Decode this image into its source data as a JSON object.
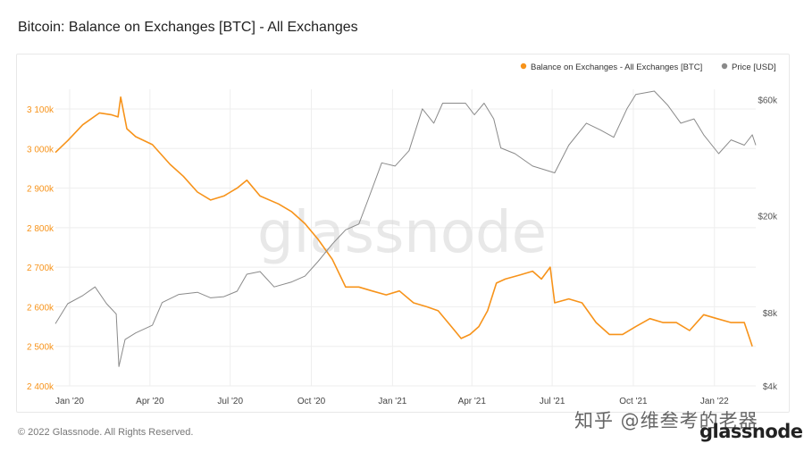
{
  "header": {
    "title": "Bitcoin: Balance on Exchanges [BTC] - All Exchanges"
  },
  "footer": {
    "copyright": "© 2022 Glassnode. All Rights Reserved.",
    "watermark_cn": "知乎 @维叁考的老器",
    "logo": "glassnode"
  },
  "chart_watermark": "glassnode",
  "colors": {
    "balance": "#f7931a",
    "price": "#8a8a8a",
    "grid": "#eeeeee"
  },
  "chart_data": {
    "type": "line",
    "legend": {
      "placement": "top-right",
      "items": [
        {
          "label": "Balance on Exchanges - All Exchanges [BTC]",
          "color": "#f7931a"
        },
        {
          "label": "Price [USD]",
          "color": "#8a8a8a"
        }
      ]
    },
    "x_ticks": [
      "Jan '20",
      "Apr '20",
      "Jul '20",
      "Oct '20",
      "Jan '21",
      "Apr '21",
      "Jul '21",
      "Oct '21",
      "Jan '22"
    ],
    "y_left": {
      "ticks": [
        "3 100k",
        "3 000k",
        "2 900k",
        "2 800k",
        "2 700k",
        "2 600k",
        "2 500k",
        "2 400k"
      ],
      "range": [
        2400000,
        3100000
      ]
    },
    "y_right": {
      "ticks": [
        "$60k",
        "$20k",
        "$8k",
        "$4k"
      ],
      "scale": "log"
    },
    "series": [
      {
        "name": "Balance on Exchanges - All Exchanges [BTC]",
        "axis": "left",
        "points": [
          [
            "2020-01-01",
            2990000
          ],
          [
            "2020-01-15",
            3020000
          ],
          [
            "2020-02-01",
            3060000
          ],
          [
            "2020-02-20",
            3090000
          ],
          [
            "2020-03-05",
            3085000
          ],
          [
            "2020-03-12",
            3080000
          ],
          [
            "2020-03-15",
            3130000
          ],
          [
            "2020-03-22",
            3050000
          ],
          [
            "2020-04-01",
            3030000
          ],
          [
            "2020-04-20",
            3010000
          ],
          [
            "2020-05-10",
            2960000
          ],
          [
            "2020-05-25",
            2930000
          ],
          [
            "2020-06-10",
            2890000
          ],
          [
            "2020-06-25",
            2870000
          ],
          [
            "2020-07-10",
            2880000
          ],
          [
            "2020-07-25",
            2900000
          ],
          [
            "2020-08-05",
            2920000
          ],
          [
            "2020-08-20",
            2880000
          ],
          [
            "2020-09-10",
            2860000
          ],
          [
            "2020-09-25",
            2840000
          ],
          [
            "2020-10-10",
            2810000
          ],
          [
            "2020-10-25",
            2770000
          ],
          [
            "2020-11-10",
            2720000
          ],
          [
            "2020-11-25",
            2650000
          ],
          [
            "2020-12-10",
            2650000
          ],
          [
            "2020-12-25",
            2640000
          ],
          [
            "2021-01-10",
            2630000
          ],
          [
            "2021-01-25",
            2640000
          ],
          [
            "2021-02-10",
            2610000
          ],
          [
            "2021-02-25",
            2600000
          ],
          [
            "2021-03-10",
            2590000
          ],
          [
            "2021-03-25",
            2550000
          ],
          [
            "2021-04-05",
            2520000
          ],
          [
            "2021-04-15",
            2530000
          ],
          [
            "2021-04-25",
            2550000
          ],
          [
            "2021-05-05",
            2590000
          ],
          [
            "2021-05-15",
            2660000
          ],
          [
            "2021-05-25",
            2670000
          ],
          [
            "2021-06-10",
            2680000
          ],
          [
            "2021-06-25",
            2690000
          ],
          [
            "2021-07-05",
            2670000
          ],
          [
            "2021-07-15",
            2700000
          ],
          [
            "2021-07-20",
            2610000
          ],
          [
            "2021-08-05",
            2620000
          ],
          [
            "2021-08-20",
            2610000
          ],
          [
            "2021-09-05",
            2560000
          ],
          [
            "2021-09-20",
            2530000
          ],
          [
            "2021-10-05",
            2530000
          ],
          [
            "2021-10-20",
            2550000
          ],
          [
            "2021-11-05",
            2570000
          ],
          [
            "2021-11-20",
            2560000
          ],
          [
            "2021-12-05",
            2560000
          ],
          [
            "2021-12-20",
            2540000
          ],
          [
            "2022-01-05",
            2580000
          ],
          [
            "2022-01-20",
            2570000
          ],
          [
            "2022-02-05",
            2560000
          ],
          [
            "2022-02-20",
            2560000
          ],
          [
            "2022-03-01",
            2500000
          ]
        ]
      },
      {
        "name": "Price [USD]",
        "axis": "right",
        "points": [
          [
            "2020-01-01",
            7200
          ],
          [
            "2020-01-15",
            8700
          ],
          [
            "2020-02-01",
            9400
          ],
          [
            "2020-02-15",
            10200
          ],
          [
            "2020-02-28",
            8700
          ],
          [
            "2020-03-10",
            7900
          ],
          [
            "2020-03-13",
            4800
          ],
          [
            "2020-03-20",
            6200
          ],
          [
            "2020-04-01",
            6600
          ],
          [
            "2020-04-20",
            7100
          ],
          [
            "2020-05-01",
            8800
          ],
          [
            "2020-05-20",
            9500
          ],
          [
            "2020-06-10",
            9700
          ],
          [
            "2020-06-25",
            9200
          ],
          [
            "2020-07-10",
            9300
          ],
          [
            "2020-07-25",
            9800
          ],
          [
            "2020-08-05",
            11500
          ],
          [
            "2020-08-20",
            11800
          ],
          [
            "2020-09-05",
            10200
          ],
          [
            "2020-09-25",
            10700
          ],
          [
            "2020-10-10",
            11300
          ],
          [
            "2020-10-25",
            13000
          ],
          [
            "2020-11-10",
            15300
          ],
          [
            "2020-11-25",
            17500
          ],
          [
            "2020-12-10",
            18500
          ],
          [
            "2020-12-20",
            23000
          ],
          [
            "2021-01-05",
            33000
          ],
          [
            "2021-01-20",
            32000
          ],
          [
            "2021-02-05",
            37000
          ],
          [
            "2021-02-20",
            55000
          ],
          [
            "2021-03-05",
            48000
          ],
          [
            "2021-03-15",
            58000
          ],
          [
            "2021-04-10",
            58000
          ],
          [
            "2021-04-20",
            52000
          ],
          [
            "2021-05-01",
            58000
          ],
          [
            "2021-05-12",
            50000
          ],
          [
            "2021-05-20",
            38000
          ],
          [
            "2021-06-05",
            36000
          ],
          [
            "2021-06-25",
            32000
          ],
          [
            "2021-07-20",
            30000
          ],
          [
            "2021-08-05",
            39000
          ],
          [
            "2021-08-25",
            48000
          ],
          [
            "2021-09-10",
            45000
          ],
          [
            "2021-09-25",
            42000
          ],
          [
            "2021-10-10",
            55000
          ],
          [
            "2021-10-20",
            63000
          ],
          [
            "2021-11-10",
            65000
          ],
          [
            "2021-11-25",
            57000
          ],
          [
            "2021-12-10",
            48000
          ],
          [
            "2021-12-25",
            50000
          ],
          [
            "2022-01-05",
            43000
          ],
          [
            "2022-01-22",
            36000
          ],
          [
            "2022-02-05",
            41000
          ],
          [
            "2022-02-20",
            39000
          ],
          [
            "2022-03-01",
            43000
          ],
          [
            "2022-03-05",
            39000
          ]
        ]
      }
    ]
  }
}
